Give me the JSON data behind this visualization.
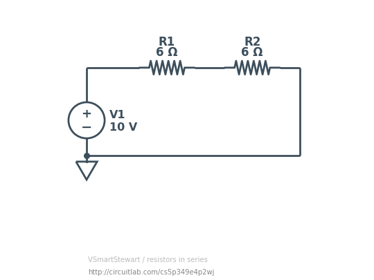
{
  "bg_color": "#ffffff",
  "circuit_color": "#3d4f5c",
  "footer_bg": "#1c1c1c",
  "footer_line1": "VSmartStewart / resistors in series",
  "footer_line2": "http://circuitlab.com/cs5p349e4p2wj",
  "r1_label": "R1",
  "r1_value": "6 Ω",
  "r2_label": "R2",
  "r2_value": "6 Ω",
  "v1_label": "V1",
  "v1_value": "10 V",
  "lw": 2.0
}
